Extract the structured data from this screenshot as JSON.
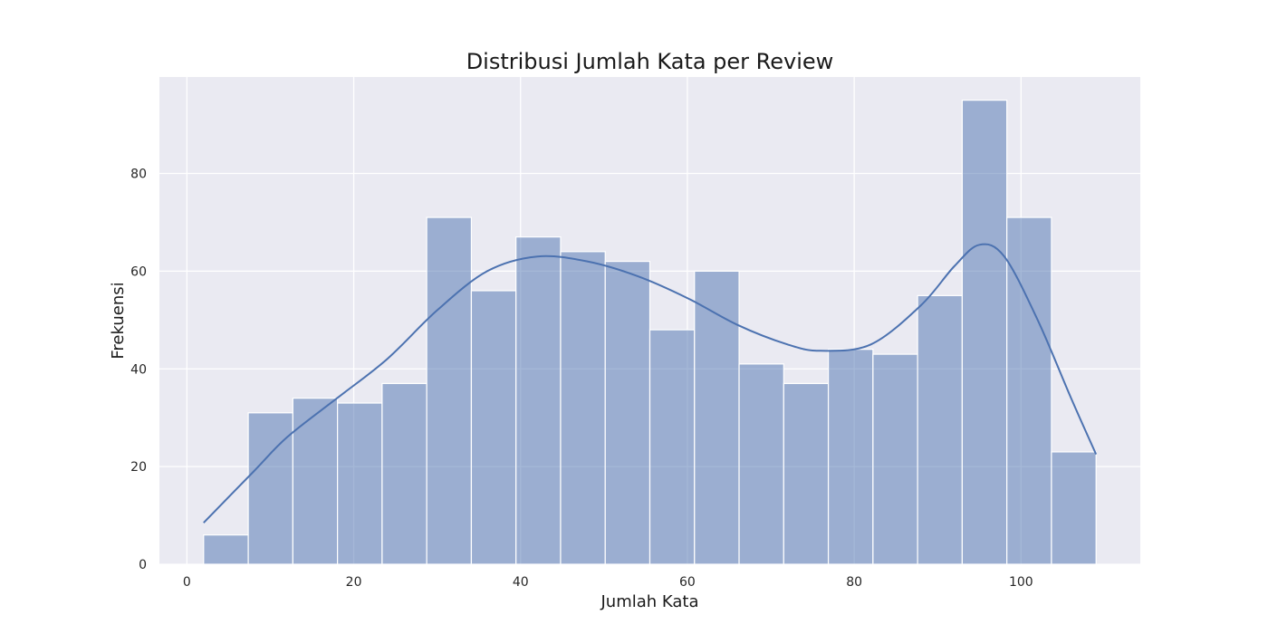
{
  "chart_data": {
    "type": "bar",
    "subtype": "histogram_with_kde",
    "title": "Distribusi Jumlah Kata per Review",
    "xlabel": "Jumlah Kata",
    "ylabel": "Frekuensi",
    "bin_edges": [
      2,
      7.35,
      12.7,
      18.05,
      23.4,
      28.75,
      34.1,
      39.45,
      44.8,
      50.15,
      55.5,
      60.85,
      66.2,
      71.55,
      76.9,
      82.25,
      87.6,
      92.95,
      98.3,
      103.65,
      109
    ],
    "values": [
      6,
      31,
      34,
      33,
      37,
      71,
      56,
      67,
      64,
      62,
      48,
      60,
      41,
      37,
      44,
      43,
      55,
      95,
      71,
      23
    ],
    "kde": {
      "x": [
        2,
        8,
        12,
        18,
        24,
        30,
        36,
        42,
        48,
        54,
        60,
        66,
        72,
        76,
        82,
        88,
        92,
        95,
        98,
        102,
        106,
        109
      ],
      "y": [
        8.5,
        19,
        26,
        34,
        42,
        52,
        60,
        63,
        62,
        59,
        54.5,
        49,
        45,
        43.7,
        45,
        53,
        61,
        65.4,
        63,
        50,
        34,
        22.5
      ]
    },
    "xlim": [
      -3.3,
      114.3
    ],
    "ylim": [
      0,
      99.75
    ],
    "xticks": [
      0,
      20,
      40,
      60,
      80,
      100
    ],
    "yticks": [
      0,
      20,
      40,
      60,
      80
    ],
    "grid": true,
    "colors": {
      "background": "#eaeaf2",
      "bar_fill": "#4c72b0",
      "bar_opacity": 0.5,
      "kde_line": "#4c72b0",
      "grid": "#ffffff"
    }
  }
}
